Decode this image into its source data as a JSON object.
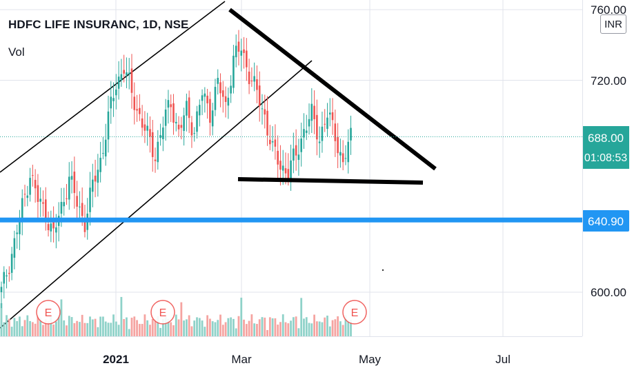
{
  "header": {
    "symbol_title": "HDFC LIFE INSURANC, 1D, NSE",
    "volume_label": "Vol",
    "currency_button": "INR"
  },
  "colors": {
    "up": "#26a69a",
    "down": "#ef5350",
    "vol_up": "#8fd2c9",
    "vol_down": "#f5a4a1",
    "price_line": "#26a69a",
    "level_line": "#2196f3",
    "earnings": "#ef5350",
    "drawing": "#000000",
    "grid": "#e0e3eb",
    "axis_text": "#131722"
  },
  "price_axis": {
    "ticks": [
      "760.00",
      "720.00",
      "600.00"
    ],
    "current_price": "688.00",
    "countdown": "01:08:53",
    "level_label": "640.90"
  },
  "time_axis": {
    "labels": [
      "2021",
      "Mar",
      "May",
      "Jul"
    ]
  },
  "earnings_markers": [
    "E",
    "E",
    "E"
  ],
  "chart_data": {
    "type": "candlestick",
    "symbol": "HDFC LIFE INSURANC",
    "interval": "1D",
    "exchange": "NSE",
    "y_ticks": [
      760,
      720,
      600
    ],
    "ylim": [
      570,
      765
    ],
    "current_price": 688.0,
    "horizontal_level": 640.9,
    "x_labels": [
      "2021",
      "Mar",
      "May",
      "Jul"
    ],
    "trend": {
      "start_close": 600,
      "swing_points": [
        [
          0,
          600
        ],
        [
          5,
          628
        ],
        [
          8,
          648
        ],
        [
          11,
          668
        ],
        [
          14,
          652
        ],
        [
          17,
          645
        ],
        [
          20,
          632
        ],
        [
          23,
          648
        ],
        [
          26,
          665
        ],
        [
          29,
          650
        ],
        [
          32,
          640
        ],
        [
          35,
          660
        ],
        [
          38,
          675
        ],
        [
          41,
          698
        ],
        [
          44,
          718
        ],
        [
          47,
          728
        ],
        [
          50,
          712
        ],
        [
          53,
          700
        ],
        [
          56,
          688
        ],
        [
          59,
          678
        ],
        [
          62,
          695
        ],
        [
          65,
          708
        ],
        [
          68,
          690
        ],
        [
          71,
          703
        ],
        [
          74,
          692
        ],
        [
          77,
          712
        ],
        [
          80,
          702
        ],
        [
          83,
          718
        ],
        [
          86,
          705
        ],
        [
          89,
          732
        ],
        [
          92,
          738
        ],
        [
          95,
          724
        ],
        [
          98,
          712
        ],
        [
          101,
          700
        ],
        [
          104,
          680
        ],
        [
          107,
          672
        ],
        [
          110,
          668
        ],
        [
          113,
          678
        ],
        [
          116,
          692
        ],
        [
          119,
          700
        ],
        [
          122,
          688
        ],
        [
          125,
          700
        ],
        [
          128,
          690
        ],
        [
          131,
          672
        ],
        [
          134,
          688
        ]
      ]
    }
  }
}
